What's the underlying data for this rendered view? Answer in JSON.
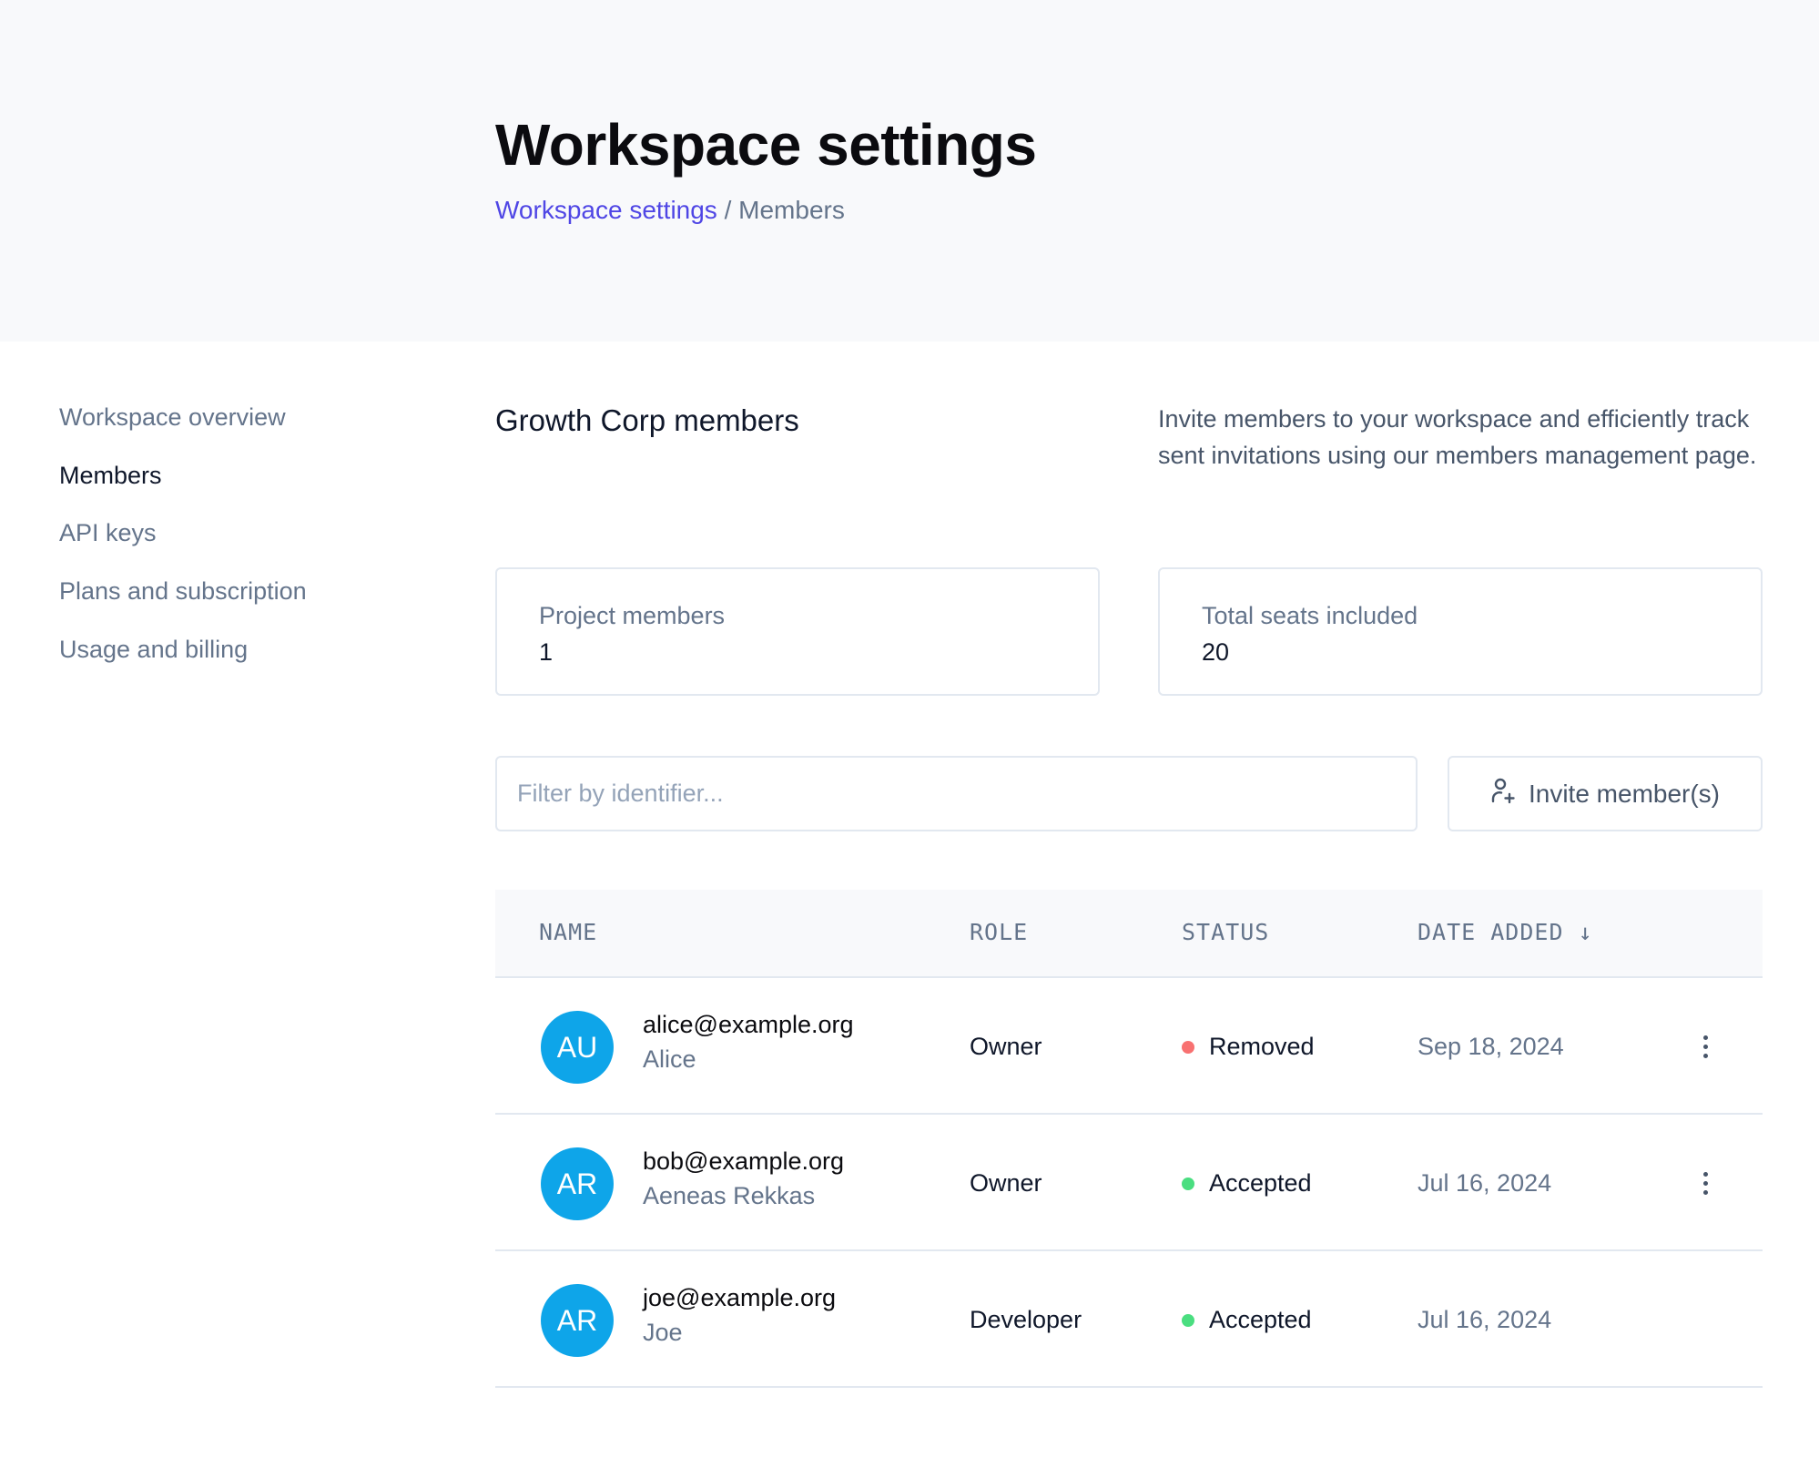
{
  "header": {
    "title": "Workspace settings",
    "breadcrumb": {
      "link": "Workspace settings",
      "separator": "/",
      "current": "Members"
    }
  },
  "sidebar": {
    "items": [
      {
        "label": "Workspace overview",
        "active": false
      },
      {
        "label": "Members",
        "active": true
      },
      {
        "label": "API keys",
        "active": false
      },
      {
        "label": "Plans and subscription",
        "active": false
      },
      {
        "label": "Usage and billing",
        "active": false
      }
    ]
  },
  "main": {
    "section_title": "Growth Corp members",
    "description": "Invite members to your workspace and efficiently track sent invitations using our members management page.",
    "stats": [
      {
        "label": "Project members",
        "value": "1"
      },
      {
        "label": "Total seats included",
        "value": "20"
      }
    ],
    "filter": {
      "placeholder": "Filter by identifier...",
      "value": ""
    },
    "invite_label": "Invite member(s)",
    "table": {
      "columns": [
        "NAME",
        "ROLE",
        "STATUS",
        "DATE ADDED"
      ],
      "sort_indicator": "↓",
      "rows": [
        {
          "initials": "AU",
          "email": "alice@example.org",
          "name": "Alice",
          "role": "Owner",
          "status": "Removed",
          "status_color": "#f87171",
          "date": "Sep 18, 2024",
          "has_menu": true
        },
        {
          "initials": "AR",
          "email": "bob@example.org",
          "name": "Aeneas Rekkas",
          "role": "Owner",
          "status": "Accepted",
          "status_color": "#4ade80",
          "date": "Jul 16, 2024",
          "has_menu": true
        },
        {
          "initials": "AR",
          "email": "joe@example.org",
          "name": "Joe",
          "role": "Developer",
          "status": "Accepted",
          "status_color": "#4ade80",
          "date": "Jul 16, 2024",
          "has_menu": false
        }
      ]
    }
  },
  "colors": {
    "accent": "#4f46e5",
    "avatar": "#0ea5e9",
    "removed": "#f87171",
    "accepted": "#4ade80"
  }
}
